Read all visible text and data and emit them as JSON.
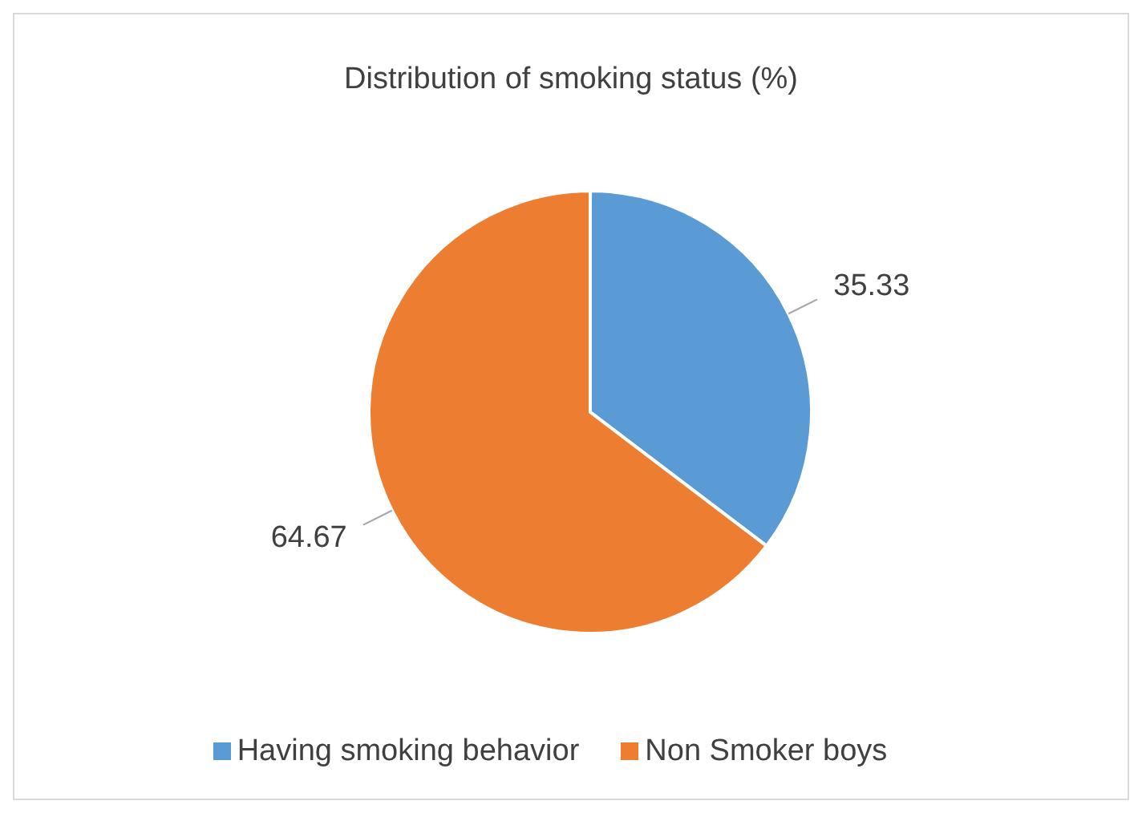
{
  "chart_data": {
    "type": "pie",
    "title": "Distribution of smoking status (%)",
    "categories": [
      "Having smoking behavior",
      "Non Smoker boys"
    ],
    "values": [
      35.33,
      64.67
    ],
    "colors": [
      "#5b9bd5",
      "#ed7d31"
    ],
    "data_labels": true,
    "legend": "bottom"
  }
}
